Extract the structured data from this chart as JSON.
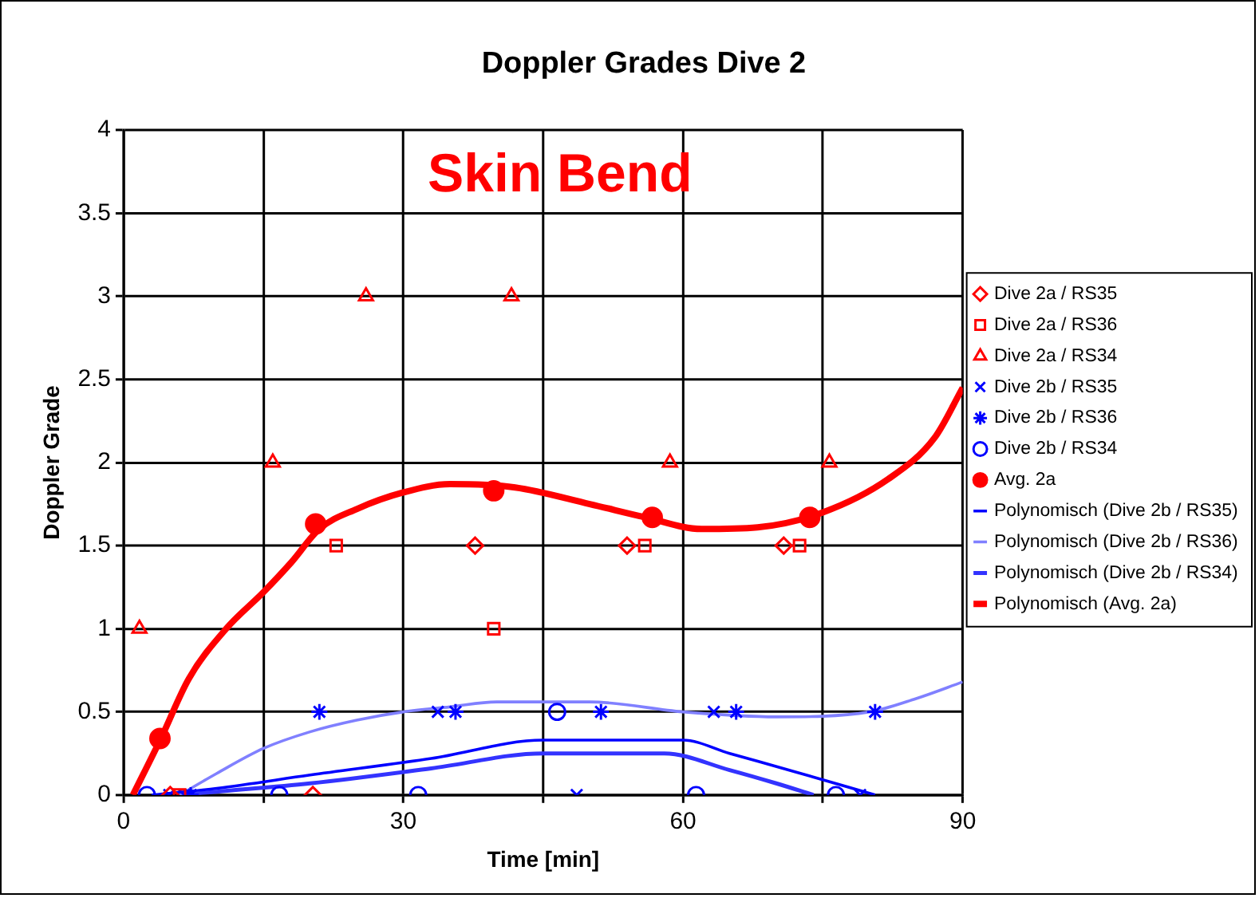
{
  "chart_data": {
    "type": "scatter",
    "title": "Doppler Grades Dive 2",
    "xlabel": "Time [min]",
    "ylabel": "Doppler Grade",
    "annotations": [
      "Skin Bend"
    ],
    "xlim": [
      0,
      90
    ],
    "xticks": [
      0,
      {
        "value": 15,
        "label": null
      },
      30,
      {
        "value": 45,
        "label": null
      },
      60,
      {
        "value": 75,
        "label": null
      },
      90
    ],
    "ylim": [
      0,
      4
    ],
    "yticks": [
      0,
      0.5,
      1,
      1.5,
      2,
      2.5,
      3,
      3.5,
      4
    ],
    "grid": true,
    "legend": "right",
    "series": [
      {
        "name": "Dive 2a / RS35",
        "type": "scatter",
        "marker": "diamond",
        "color": "#ff0000",
        "x": [
          5,
          20.3,
          37.7,
          54,
          70.8
        ],
        "values": [
          0,
          0,
          1.5,
          1.5,
          1.5
        ]
      },
      {
        "name": "Dive 2a / RS36",
        "type": "scatter",
        "marker": "square",
        "color": "#ff0000",
        "x": [
          6,
          22.8,
          39.7,
          55.9,
          72.5
        ],
        "values": [
          0,
          1.5,
          1,
          1.5,
          1.5
        ]
      },
      {
        "name": "Dive 2a / RS34",
        "type": "scatter",
        "marker": "triangle",
        "color": "#ff0000",
        "x": [
          1.7,
          16,
          26,
          41.6,
          58.6,
          75.7
        ],
        "values": [
          1,
          2,
          3,
          3,
          2,
          2
        ]
      },
      {
        "name": "Dive 2b / RS35",
        "type": "scatter",
        "marker": "cross",
        "color": "#0000ff",
        "x": [
          4.9,
          6.5,
          33.7,
          48.6,
          63.3,
          79
        ],
        "values": [
          0,
          0,
          0.5,
          0,
          0.5,
          0
        ]
      },
      {
        "name": "Dive 2b / RS36",
        "type": "scatter",
        "color": "#0000ff",
        "x": [
          7.2,
          21,
          35.6,
          51.2,
          65.7,
          80.6
        ],
        "values": [
          0,
          0.5,
          0.5,
          0.5,
          0.5,
          0.5
        ]
      },
      {
        "name": "Dive 2b / RS34",
        "type": "scatter",
        "marker": "circle",
        "color": "#0000ff",
        "x": [
          2.5,
          16.7,
          31.6,
          46.5,
          61.4,
          76.4
        ],
        "values": [
          0,
          0,
          0,
          0.5,
          0,
          0
        ]
      },
      {
        "name": "Avg. 2a",
        "type": "scatter",
        "marker": "filled-circle",
        "color": "#ff0000",
        "x": [
          3.9,
          20.6,
          39.7,
          56.7,
          73.6
        ],
        "values": [
          0.34,
          1.63,
          1.83,
          1.67,
          1.67
        ]
      },
      {
        "name": "Polynomisch (Dive 2b / RS35)",
        "type": "line",
        "marker": "none",
        "line_style": "solid",
        "color": "#0000ff",
        "x": [
          3,
          10,
          20,
          33,
          45,
          50,
          60,
          65,
          72,
          80.6
        ],
        "values": [
          0,
          0.04,
          0.12,
          0.22,
          0.33,
          0.33,
          0.33,
          0.25,
          0.14,
          0
        ]
      },
      {
        "name": "Polynomisch (Dive 2b / RS36)",
        "type": "line",
        "marker": "none",
        "line_style": "solid",
        "color": "#8080ff",
        "x": [
          6,
          10,
          15,
          20,
          25,
          30,
          35,
          40,
          50,
          60,
          70,
          80,
          85,
          90
        ],
        "values": [
          0,
          0.13,
          0.28,
          0.38,
          0.45,
          0.5,
          0.53,
          0.56,
          0.56,
          0.5,
          0.47,
          0.5,
          0.58,
          0.68
        ]
      },
      {
        "name": "Polynomisch (Dive 2b / RS34)",
        "type": "line",
        "marker": "none",
        "line_style": "solid",
        "color": "#3333ff",
        "x": [
          6,
          10,
          20,
          33,
          45,
          50,
          58,
          65,
          70,
          74
        ],
        "values": [
          0,
          0.02,
          0.07,
          0.16,
          0.25,
          0.25,
          0.25,
          0.15,
          0.07,
          0
        ]
      },
      {
        "name": "Polynomisch (Avg. 2a)",
        "type": "line",
        "marker": "none",
        "line_style": "solid",
        "color": "#ff0000",
        "x": [
          1,
          4,
          7,
          11,
          15,
          18,
          21,
          25,
          30,
          35,
          42,
          50,
          56,
          62,
          68,
          75,
          82,
          87,
          90
        ],
        "values": [
          0,
          0.34,
          0.7,
          1.0,
          1.22,
          1.4,
          1.6,
          1.72,
          1.82,
          1.87,
          1.85,
          1.75,
          1.67,
          1.6,
          1.61,
          1.7,
          1.9,
          2.15,
          2.45
        ]
      }
    ]
  }
}
